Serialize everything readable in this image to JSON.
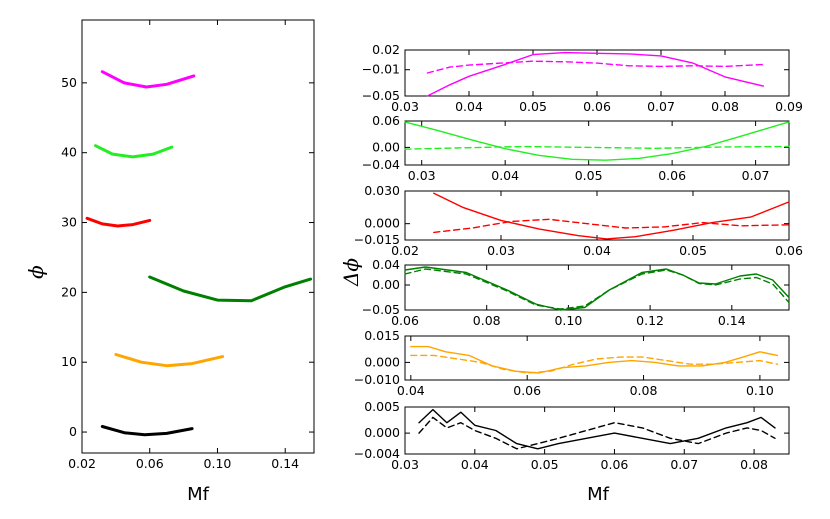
{
  "chart_data": [
    {
      "type": "line",
      "panel": "main",
      "xlabel": "Mf",
      "ylabel": "ϕ",
      "xlim": [
        0.02,
        0.157
      ],
      "ylim": [
        -3,
        59
      ],
      "xticks": [
        0.02,
        0.06,
        0.1,
        0.14
      ],
      "xtick_labels": [
        "0.02",
        "0.06",
        "0.10",
        "0.14"
      ],
      "yticks": [
        0,
        10,
        20,
        30,
        40,
        50
      ],
      "ytick_labels": [
        "0",
        "10",
        "20",
        "30",
        "40",
        "50"
      ],
      "series": [
        {
          "name": "magenta",
          "color": "#ff00ff",
          "x": [
            0.032,
            0.045,
            0.058,
            0.07,
            0.086
          ],
          "y": [
            51.6,
            50.0,
            49.4,
            49.8,
            51.0
          ]
        },
        {
          "name": "lime",
          "color": "#22ee22",
          "x": [
            0.028,
            0.038,
            0.05,
            0.062,
            0.073
          ],
          "y": [
            41.0,
            39.8,
            39.4,
            39.8,
            40.8
          ]
        },
        {
          "name": "red",
          "color": "#ff0000",
          "x": [
            0.023,
            0.032,
            0.041,
            0.05,
            0.06
          ],
          "y": [
            30.6,
            29.8,
            29.5,
            29.7,
            30.3
          ]
        },
        {
          "name": "darkgreen",
          "color": "#008000",
          "x": [
            0.06,
            0.08,
            0.1,
            0.12,
            0.14,
            0.155
          ],
          "y": [
            22.2,
            20.2,
            18.9,
            18.8,
            20.8,
            21.9
          ]
        },
        {
          "name": "orange",
          "color": "#ffa500",
          "x": [
            0.04,
            0.055,
            0.07,
            0.085,
            0.103
          ],
          "y": [
            11.1,
            10.0,
            9.5,
            9.8,
            10.8
          ]
        },
        {
          "name": "black",
          "color": "#000000",
          "x": [
            0.032,
            0.045,
            0.057,
            0.07,
            0.085
          ],
          "y": [
            0.8,
            -0.1,
            -0.4,
            -0.2,
            0.5
          ]
        }
      ]
    },
    {
      "type": "line",
      "panel": "residual-1",
      "color": "#ff00ff",
      "xlim": [
        0.03,
        0.09
      ],
      "ylim": [
        -0.05,
        0.02
      ],
      "xticks": [
        0.03,
        0.04,
        0.05,
        0.06,
        0.07,
        0.08,
        0.09
      ],
      "xtick_labels": [
        "0.03",
        "0.04",
        "0.05",
        "0.06",
        "0.07",
        "0.08",
        "0.09"
      ],
      "yticks": [
        0.02,
        -0.01,
        -0.05
      ],
      "ytick_labels": [
        "0.02",
        "−0.01",
        "−0.05"
      ],
      "series": [
        {
          "name": "solid",
          "style": "solid",
          "x": [
            0.0335,
            0.037,
            0.04,
            0.045,
            0.05,
            0.055,
            0.06,
            0.065,
            0.07,
            0.075,
            0.08,
            0.086
          ],
          "y": [
            -0.05,
            -0.033,
            -0.02,
            -0.004,
            0.013,
            0.016,
            0.015,
            0.014,
            0.011,
            0.0,
            -0.021,
            -0.035
          ]
        },
        {
          "name": "dashed",
          "style": "dashed",
          "x": [
            0.0335,
            0.037,
            0.04,
            0.045,
            0.05,
            0.055,
            0.06,
            0.065,
            0.07,
            0.075,
            0.08,
            0.086
          ],
          "y": [
            -0.015,
            -0.006,
            -0.003,
            0.0,
            0.003,
            0.002,
            0.0,
            -0.004,
            -0.005,
            -0.004,
            -0.005,
            -0.002
          ]
        }
      ]
    },
    {
      "type": "line",
      "panel": "residual-2",
      "color": "#22ee22",
      "xlim": [
        0.028,
        0.074
      ],
      "ylim": [
        -0.04,
        0.06
      ],
      "xticks": [
        0.03,
        0.04,
        0.05,
        0.06,
        0.07
      ],
      "xtick_labels": [
        "0.03",
        "0.04",
        "0.05",
        "0.06",
        "0.07"
      ],
      "yticks": [
        0.06,
        0.0,
        -0.04
      ],
      "ytick_labels": [
        "0.06",
        "0.00",
        "−0.04"
      ],
      "series": [
        {
          "name": "solid",
          "style": "solid",
          "x": [
            0.028,
            0.032,
            0.036,
            0.04,
            0.044,
            0.048,
            0.052,
            0.056,
            0.06,
            0.064,
            0.068,
            0.074
          ],
          "y": [
            0.058,
            0.038,
            0.017,
            -0.003,
            -0.018,
            -0.027,
            -0.029,
            -0.025,
            -0.014,
            0.002,
            0.024,
            0.058
          ]
        },
        {
          "name": "dashed",
          "style": "dashed",
          "x": [
            0.028,
            0.035,
            0.042,
            0.05,
            0.058,
            0.066,
            0.074
          ],
          "y": [
            -0.004,
            -0.001,
            0.002,
            0.0,
            -0.002,
            0.001,
            0.002
          ]
        }
      ]
    },
    {
      "type": "line",
      "panel": "residual-3",
      "color": "#ff0000",
      "xlim": [
        0.02,
        0.06
      ],
      "ylim": [
        -0.015,
        0.03
      ],
      "xticks": [
        0.02,
        0.03,
        0.04,
        0.05,
        0.06
      ],
      "xtick_labels": [
        "0.02",
        "0.03",
        "0.04",
        "0.05",
        "0.06"
      ],
      "yticks": [
        0.03,
        0.0,
        -0.015
      ],
      "ytick_labels": [
        "0.030",
        "0.000",
        "−0.015"
      ],
      "series": [
        {
          "name": "solid",
          "style": "solid",
          "x": [
            0.023,
            0.026,
            0.03,
            0.034,
            0.038,
            0.041,
            0.044,
            0.048,
            0.052,
            0.056,
            0.06
          ],
          "y": [
            0.028,
            0.015,
            0.003,
            -0.005,
            -0.011,
            -0.014,
            -0.012,
            -0.006,
            0.001,
            0.006,
            0.02
          ]
        },
        {
          "name": "dashed",
          "style": "dashed",
          "x": [
            0.023,
            0.027,
            0.031,
            0.035,
            0.039,
            0.043,
            0.047,
            0.051,
            0.055,
            0.06
          ],
          "y": [
            -0.008,
            -0.004,
            0.002,
            0.004,
            0.0,
            -0.004,
            -0.003,
            0.001,
            -0.002,
            -0.001
          ]
        }
      ]
    },
    {
      "type": "line",
      "panel": "residual-4",
      "color": "#008000",
      "xlim": [
        0.06,
        0.154
      ],
      "ylim": [
        -0.05,
        0.04
      ],
      "xticks": [
        0.06,
        0.08,
        0.1,
        0.12,
        0.14
      ],
      "xtick_labels": [
        "0.06",
        "0.08",
        "0.10",
        "0.12",
        "0.14"
      ],
      "yticks": [
        0.04,
        0.0,
        -0.05
      ],
      "ytick_labels": [
        "0.04",
        "0.00",
        "−0.05"
      ],
      "series": [
        {
          "name": "solid",
          "style": "solid",
          "x": [
            0.06,
            0.065,
            0.075,
            0.085,
            0.092,
            0.098,
            0.104,
            0.11,
            0.118,
            0.124,
            0.128,
            0.132,
            0.136,
            0.142,
            0.146,
            0.15,
            0.154
          ],
          "y": [
            0.03,
            0.036,
            0.025,
            -0.01,
            -0.038,
            -0.05,
            -0.045,
            -0.01,
            0.025,
            0.032,
            0.02,
            0.004,
            0.002,
            0.018,
            0.022,
            0.01,
            -0.025
          ]
        },
        {
          "name": "dashed",
          "style": "dashed",
          "x": [
            0.06,
            0.065,
            0.075,
            0.085,
            0.092,
            0.098,
            0.104,
            0.11,
            0.118,
            0.124,
            0.128,
            0.132,
            0.136,
            0.142,
            0.146,
            0.15,
            0.154
          ],
          "y": [
            0.022,
            0.032,
            0.022,
            -0.012,
            -0.04,
            -0.048,
            -0.042,
            -0.01,
            0.022,
            0.03,
            0.02,
            0.003,
            0.0,
            0.012,
            0.015,
            0.002,
            -0.035
          ]
        }
      ]
    },
    {
      "type": "line",
      "panel": "residual-5",
      "color": "#ffa500",
      "xlim": [
        0.039,
        0.105
      ],
      "ylim": [
        -0.01,
        0.015
      ],
      "xticks": [
        0.04,
        0.06,
        0.08,
        0.1
      ],
      "xtick_labels": [
        "0.04",
        "0.06",
        "0.08",
        "0.10"
      ],
      "yticks": [
        0.015,
        0.0,
        -0.01
      ],
      "ytick_labels": [
        "0.015",
        "0.000",
        "−0.010"
      ],
      "series": [
        {
          "name": "solid",
          "style": "solid",
          "x": [
            0.04,
            0.043,
            0.046,
            0.05,
            0.054,
            0.058,
            0.062,
            0.066,
            0.07,
            0.074,
            0.078,
            0.082,
            0.086,
            0.09,
            0.094,
            0.098,
            0.1,
            0.103
          ],
          "y": [
            0.009,
            0.009,
            0.006,
            0.004,
            -0.002,
            -0.005,
            -0.006,
            -0.003,
            -0.002,
            0.0,
            0.001,
            0.0,
            -0.002,
            -0.002,
            0.0,
            0.004,
            0.006,
            0.004
          ]
        },
        {
          "name": "dashed",
          "style": "dashed",
          "x": [
            0.04,
            0.044,
            0.048,
            0.052,
            0.056,
            0.06,
            0.064,
            0.068,
            0.072,
            0.076,
            0.08,
            0.084,
            0.088,
            0.092,
            0.096,
            0.1,
            0.103
          ],
          "y": [
            0.004,
            0.004,
            0.002,
            0.0,
            -0.004,
            -0.006,
            -0.005,
            -0.001,
            0.002,
            0.003,
            0.003,
            0.001,
            -0.001,
            -0.001,
            0.0,
            0.001,
            -0.001
          ]
        }
      ]
    },
    {
      "type": "line",
      "panel": "residual-6",
      "color": "#000000",
      "xlabel": "Mf",
      "xlim": [
        0.03,
        0.085
      ],
      "ylim": [
        -0.004,
        0.005
      ],
      "xticks": [
        0.03,
        0.04,
        0.05,
        0.06,
        0.07,
        0.08
      ],
      "xtick_labels": [
        "0.03",
        "0.04",
        "0.05",
        "0.06",
        "0.07",
        "0.08"
      ],
      "yticks": [
        0.005,
        0.0,
        -0.004
      ],
      "ytick_labels": [
        "0.005",
        "0.000",
        "−0.004"
      ],
      "series": [
        {
          "name": "solid",
          "style": "solid",
          "x": [
            0.032,
            0.034,
            0.036,
            0.038,
            0.04,
            0.043,
            0.046,
            0.049,
            0.052,
            0.056,
            0.06,
            0.064,
            0.068,
            0.072,
            0.076,
            0.079,
            0.081,
            0.083
          ],
          "y": [
            0.002,
            0.0045,
            0.002,
            0.004,
            0.0015,
            0.0005,
            -0.002,
            -0.003,
            -0.002,
            -0.001,
            0.0,
            -0.001,
            -0.002,
            -0.001,
            0.001,
            0.002,
            0.003,
            0.001
          ]
        },
        {
          "name": "dashed",
          "style": "dashed",
          "x": [
            0.032,
            0.034,
            0.036,
            0.038,
            0.04,
            0.043,
            0.046,
            0.049,
            0.052,
            0.056,
            0.06,
            0.064,
            0.068,
            0.072,
            0.076,
            0.079,
            0.081,
            0.083
          ],
          "y": [
            0.0,
            0.003,
            0.001,
            0.002,
            0.0005,
            -0.001,
            -0.003,
            -0.002,
            -0.001,
            0.0005,
            0.002,
            0.001,
            -0.001,
            -0.002,
            0.0,
            0.001,
            0.0005,
            -0.001
          ]
        }
      ]
    }
  ],
  "labels": {
    "main_x": "Mf",
    "main_y": "ϕ",
    "residual_x": "Mf",
    "residual_y": "Δϕ"
  }
}
